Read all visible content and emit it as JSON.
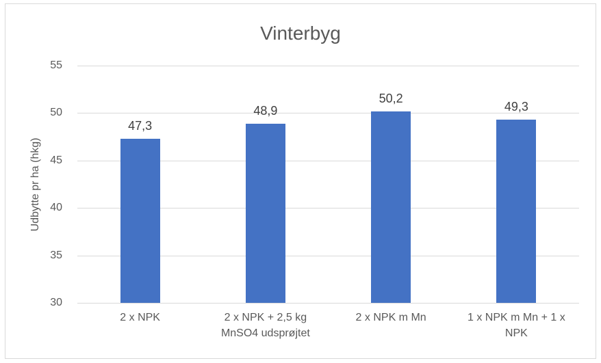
{
  "chart_data": {
    "type": "bar",
    "title": "Vinterbyg",
    "xlabel": "",
    "ylabel": "Udbytte pr ha (hkg)",
    "categories": [
      "2 x NPK",
      "2 x NPK + 2,5 kg\nMnSO4 udsprøjtet",
      "2 x NPK m Mn",
      "1 x NPK m Mn + 1 x\nNPK"
    ],
    "values": [
      47.3,
      48.9,
      50.2,
      49.3
    ],
    "value_labels": [
      "47,3",
      "48,9",
      "50,2",
      "49,3"
    ],
    "ylim": [
      30,
      55
    ],
    "yticks": [
      30,
      35,
      40,
      45,
      50,
      55
    ],
    "grid": true,
    "legend": "none",
    "colors": {
      "bar": "#4472C4",
      "gridline": "#D9D9D9",
      "axis_text": "#595959",
      "value_label_text": "#404040",
      "frame_border": "#D9D9D9"
    }
  }
}
